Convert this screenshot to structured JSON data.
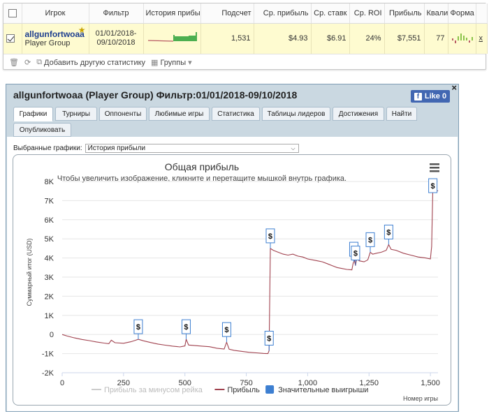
{
  "table": {
    "headers": [
      "Игрок",
      "Фильтр",
      "История прибы",
      "Подсчет",
      "Ср. прибыль",
      "Ср. ставк",
      "Ср. ROI",
      "Прибыль",
      "Квали",
      "Форма"
    ],
    "row": {
      "player": "allgunfortwoaa",
      "group": "Player Group",
      "filter_line1": "01/01/2018-",
      "filter_line2": "09/10/2018",
      "count": "1,531",
      "avg_profit": "$4.93",
      "avg_stake": "$6.91",
      "avg_roi": "24%",
      "profit": "$7,551",
      "quality": "77",
      "close": "x"
    }
  },
  "toolbar": {
    "add_stat": "Добавить другую статистику",
    "groups": "Группы"
  },
  "window": {
    "title": "allgunfortwoaa (Player Group) Фильтр:01/01/2018-09/10/2018",
    "like": "Like 0",
    "close": "×",
    "tabs": [
      "Графики",
      "Турниры",
      "Оппоненты",
      "Любимые игры",
      "Статистика",
      "Таблицы лидеров",
      "Достижения",
      "Найти",
      "Опубликовать"
    ],
    "graph_label": "Выбранные графики:",
    "graph_value": "История прибыли"
  },
  "chart_data": {
    "type": "line",
    "title": "Общая прибыль",
    "subtitle": "Чтобы увеличить изображение, кликните и перетащите мышкой внутрь графика.",
    "ylabel": "Суммарный итог (USD)",
    "xlabel": "Номер игры",
    "xlim": [
      0,
      1531
    ],
    "ylim": [
      -2000,
      8000
    ],
    "x_ticks": [
      0,
      250,
      500,
      750,
      1000,
      1250,
      1500
    ],
    "x_tick_labels": [
      "0",
      "250",
      "500",
      "750",
      "1,000",
      "1,250",
      "1,500"
    ],
    "y_ticks": [
      -2000,
      -1000,
      0,
      1000,
      2000,
      3000,
      4000,
      5000,
      6000,
      7000,
      8000
    ],
    "y_tick_labels": [
      "-2K",
      "-1K",
      "0",
      "1K",
      "2K",
      "3K",
      "4K",
      "5K",
      "6K",
      "7K",
      "8K"
    ],
    "series": [
      {
        "name": "Прибыль",
        "color": "#a0414e",
        "points": [
          [
            0,
            0
          ],
          [
            20,
            -80
          ],
          [
            50,
            -180
          ],
          [
            80,
            -260
          ],
          [
            110,
            -320
          ],
          [
            140,
            -390
          ],
          [
            170,
            -450
          ],
          [
            190,
            -480
          ],
          [
            200,
            -300
          ],
          [
            215,
            -430
          ],
          [
            250,
            -460
          ],
          [
            280,
            -380
          ],
          [
            300,
            -300
          ],
          [
            310,
            -250
          ],
          [
            330,
            -330
          ],
          [
            360,
            -420
          ],
          [
            390,
            -500
          ],
          [
            420,
            -560
          ],
          [
            450,
            -610
          ],
          [
            480,
            -650
          ],
          [
            500,
            -600
          ],
          [
            505,
            -250
          ],
          [
            515,
            -550
          ],
          [
            540,
            -580
          ],
          [
            570,
            -610
          ],
          [
            600,
            -640
          ],
          [
            630,
            -720
          ],
          [
            660,
            -760
          ],
          [
            670,
            -400
          ],
          [
            680,
            -770
          ],
          [
            700,
            -830
          ],
          [
            730,
            -880
          ],
          [
            760,
            -930
          ],
          [
            790,
            -960
          ],
          [
            820,
            -990
          ],
          [
            838,
            -1000
          ],
          [
            843,
            -850
          ],
          [
            848,
            4500
          ],
          [
            860,
            4400
          ],
          [
            880,
            4300
          ],
          [
            900,
            4200
          ],
          [
            920,
            4150
          ],
          [
            940,
            4200
          ],
          [
            960,
            4100
          ],
          [
            980,
            4050
          ],
          [
            1000,
            3950
          ],
          [
            1020,
            3900
          ],
          [
            1040,
            3850
          ],
          [
            1060,
            3800
          ],
          [
            1080,
            3700
          ],
          [
            1100,
            3600
          ],
          [
            1120,
            3500
          ],
          [
            1140,
            3450
          ],
          [
            1160,
            3400
          ],
          [
            1180,
            3380
          ],
          [
            1185,
            3700
          ],
          [
            1190,
            3900
          ],
          [
            1195,
            3600
          ],
          [
            1200,
            4000
          ],
          [
            1210,
            3850
          ],
          [
            1230,
            3800
          ],
          [
            1245,
            3900
          ],
          [
            1255,
            4300
          ],
          [
            1265,
            4200
          ],
          [
            1280,
            4250
          ],
          [
            1300,
            4300
          ],
          [
            1320,
            4400
          ],
          [
            1330,
            4700
          ],
          [
            1340,
            4450
          ],
          [
            1360,
            4400
          ],
          [
            1390,
            4250
          ],
          [
            1420,
            4150
          ],
          [
            1450,
            4050
          ],
          [
            1480,
            4000
          ],
          [
            1500,
            3950
          ],
          [
            1505,
            4600
          ],
          [
            1510,
            7700
          ],
          [
            1520,
            7600
          ],
          [
            1531,
            7500
          ]
        ]
      },
      {
        "name": "Прибыль за минусом рейка",
        "color": "#d8d8d8",
        "points": []
      }
    ],
    "flags": [
      {
        "x": 310,
        "y": -250,
        "label": "$"
      },
      {
        "x": 505,
        "y": -250,
        "label": "$"
      },
      {
        "x": 670,
        "y": -400,
        "label": "$"
      },
      {
        "x": 843,
        "y": -850,
        "label": "$"
      },
      {
        "x": 848,
        "y": 4500,
        "label": "$"
      },
      {
        "x": 1188,
        "y": 3800,
        "label": "$"
      },
      {
        "x": 1195,
        "y": 3600,
        "label": "$"
      },
      {
        "x": 1255,
        "y": 4300,
        "label": "$"
      },
      {
        "x": 1330,
        "y": 4700,
        "label": "$"
      },
      {
        "x": 1510,
        "y": 7700,
        "label": "$"
      }
    ],
    "legend": [
      {
        "label": "Прибыль за минусом рейка",
        "color": "#cccccc",
        "kind": "line",
        "muted": true
      },
      {
        "label": "Прибыль",
        "color": "#a0414e",
        "kind": "line",
        "muted": false
      },
      {
        "label": "Значительные выигрыши",
        "color": "#3d7fd1",
        "kind": "box",
        "muted": false
      }
    ],
    "legend_position": "bottom-center",
    "grid": true
  }
}
